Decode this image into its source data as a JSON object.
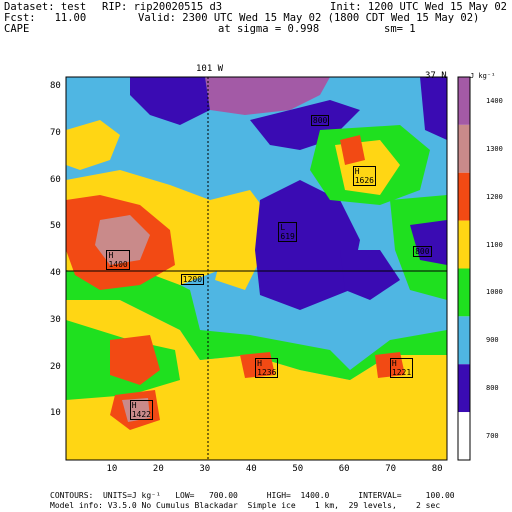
{
  "header": {
    "dataset": "Dataset: test",
    "rip": "RIP: rip20020515 d3",
    "init": "Init: 1200 UTC Wed 15 May 02",
    "fcst": "Fcst:   11.00",
    "valid": "Valid: 2300 UTC Wed 15 May 02 (1800 CDT Wed 15 May 02)",
    "field": "CAPE",
    "sigma": "at sigma = 0.998",
    "sm": "sm= 1"
  },
  "map": {
    "top_label": "101 W",
    "right_label": "37 N",
    "x_ticks": [
      "10",
      "20",
      "30",
      "40",
      "50",
      "60",
      "70",
      "80"
    ],
    "y_ticks": [
      "10",
      "20",
      "30",
      "40",
      "50",
      "60",
      "70",
      "80"
    ],
    "contour_labels": [
      {
        "text": "800",
        "x": 54,
        "y": 73
      },
      {
        "text": "H\n1626",
        "x": 63,
        "y": 62
      },
      {
        "text": "L\n619",
        "x": 47,
        "y": 50
      },
      {
        "text": "800",
        "x": 76,
        "y": 45
      },
      {
        "text": "H\n1400",
        "x": 10,
        "y": 44
      },
      {
        "text": "1200",
        "x": 26,
        "y": 39
      },
      {
        "text": "H\n1236",
        "x": 42,
        "y": 21
      },
      {
        "text": "H\n1221",
        "x": 71,
        "y": 21
      },
      {
        "text": "H\n1422",
        "x": 15,
        "y": 12
      }
    ]
  },
  "legend": {
    "units_label": "J kg⁻¹",
    "levels": [
      {
        "label": "1400",
        "color": "#a35aa6"
      },
      {
        "label": "1300",
        "color": "#c98a8a"
      },
      {
        "label": "1200",
        "color": "#f24a14"
      },
      {
        "label": "1100",
        "color": "#ffd614"
      },
      {
        "label": "1000",
        "color": "#1fe01f"
      },
      {
        "label": "900",
        "color": "#4fb6e3"
      },
      {
        "label": "800",
        "color": "#3a0bb3"
      },
      {
        "label": "700",
        "color": "#ffffff"
      }
    ]
  },
  "footer": {
    "contours": "CONTOURS:  UNITS=J kg⁻¹   LOW=   700.00      HIGH=  1400.0      INTERVAL=     100.00",
    "model": "Model info: V3.5.0 No Cumulus Blackadar  Simple ice    1 km,  29 levels,    2 sec"
  }
}
